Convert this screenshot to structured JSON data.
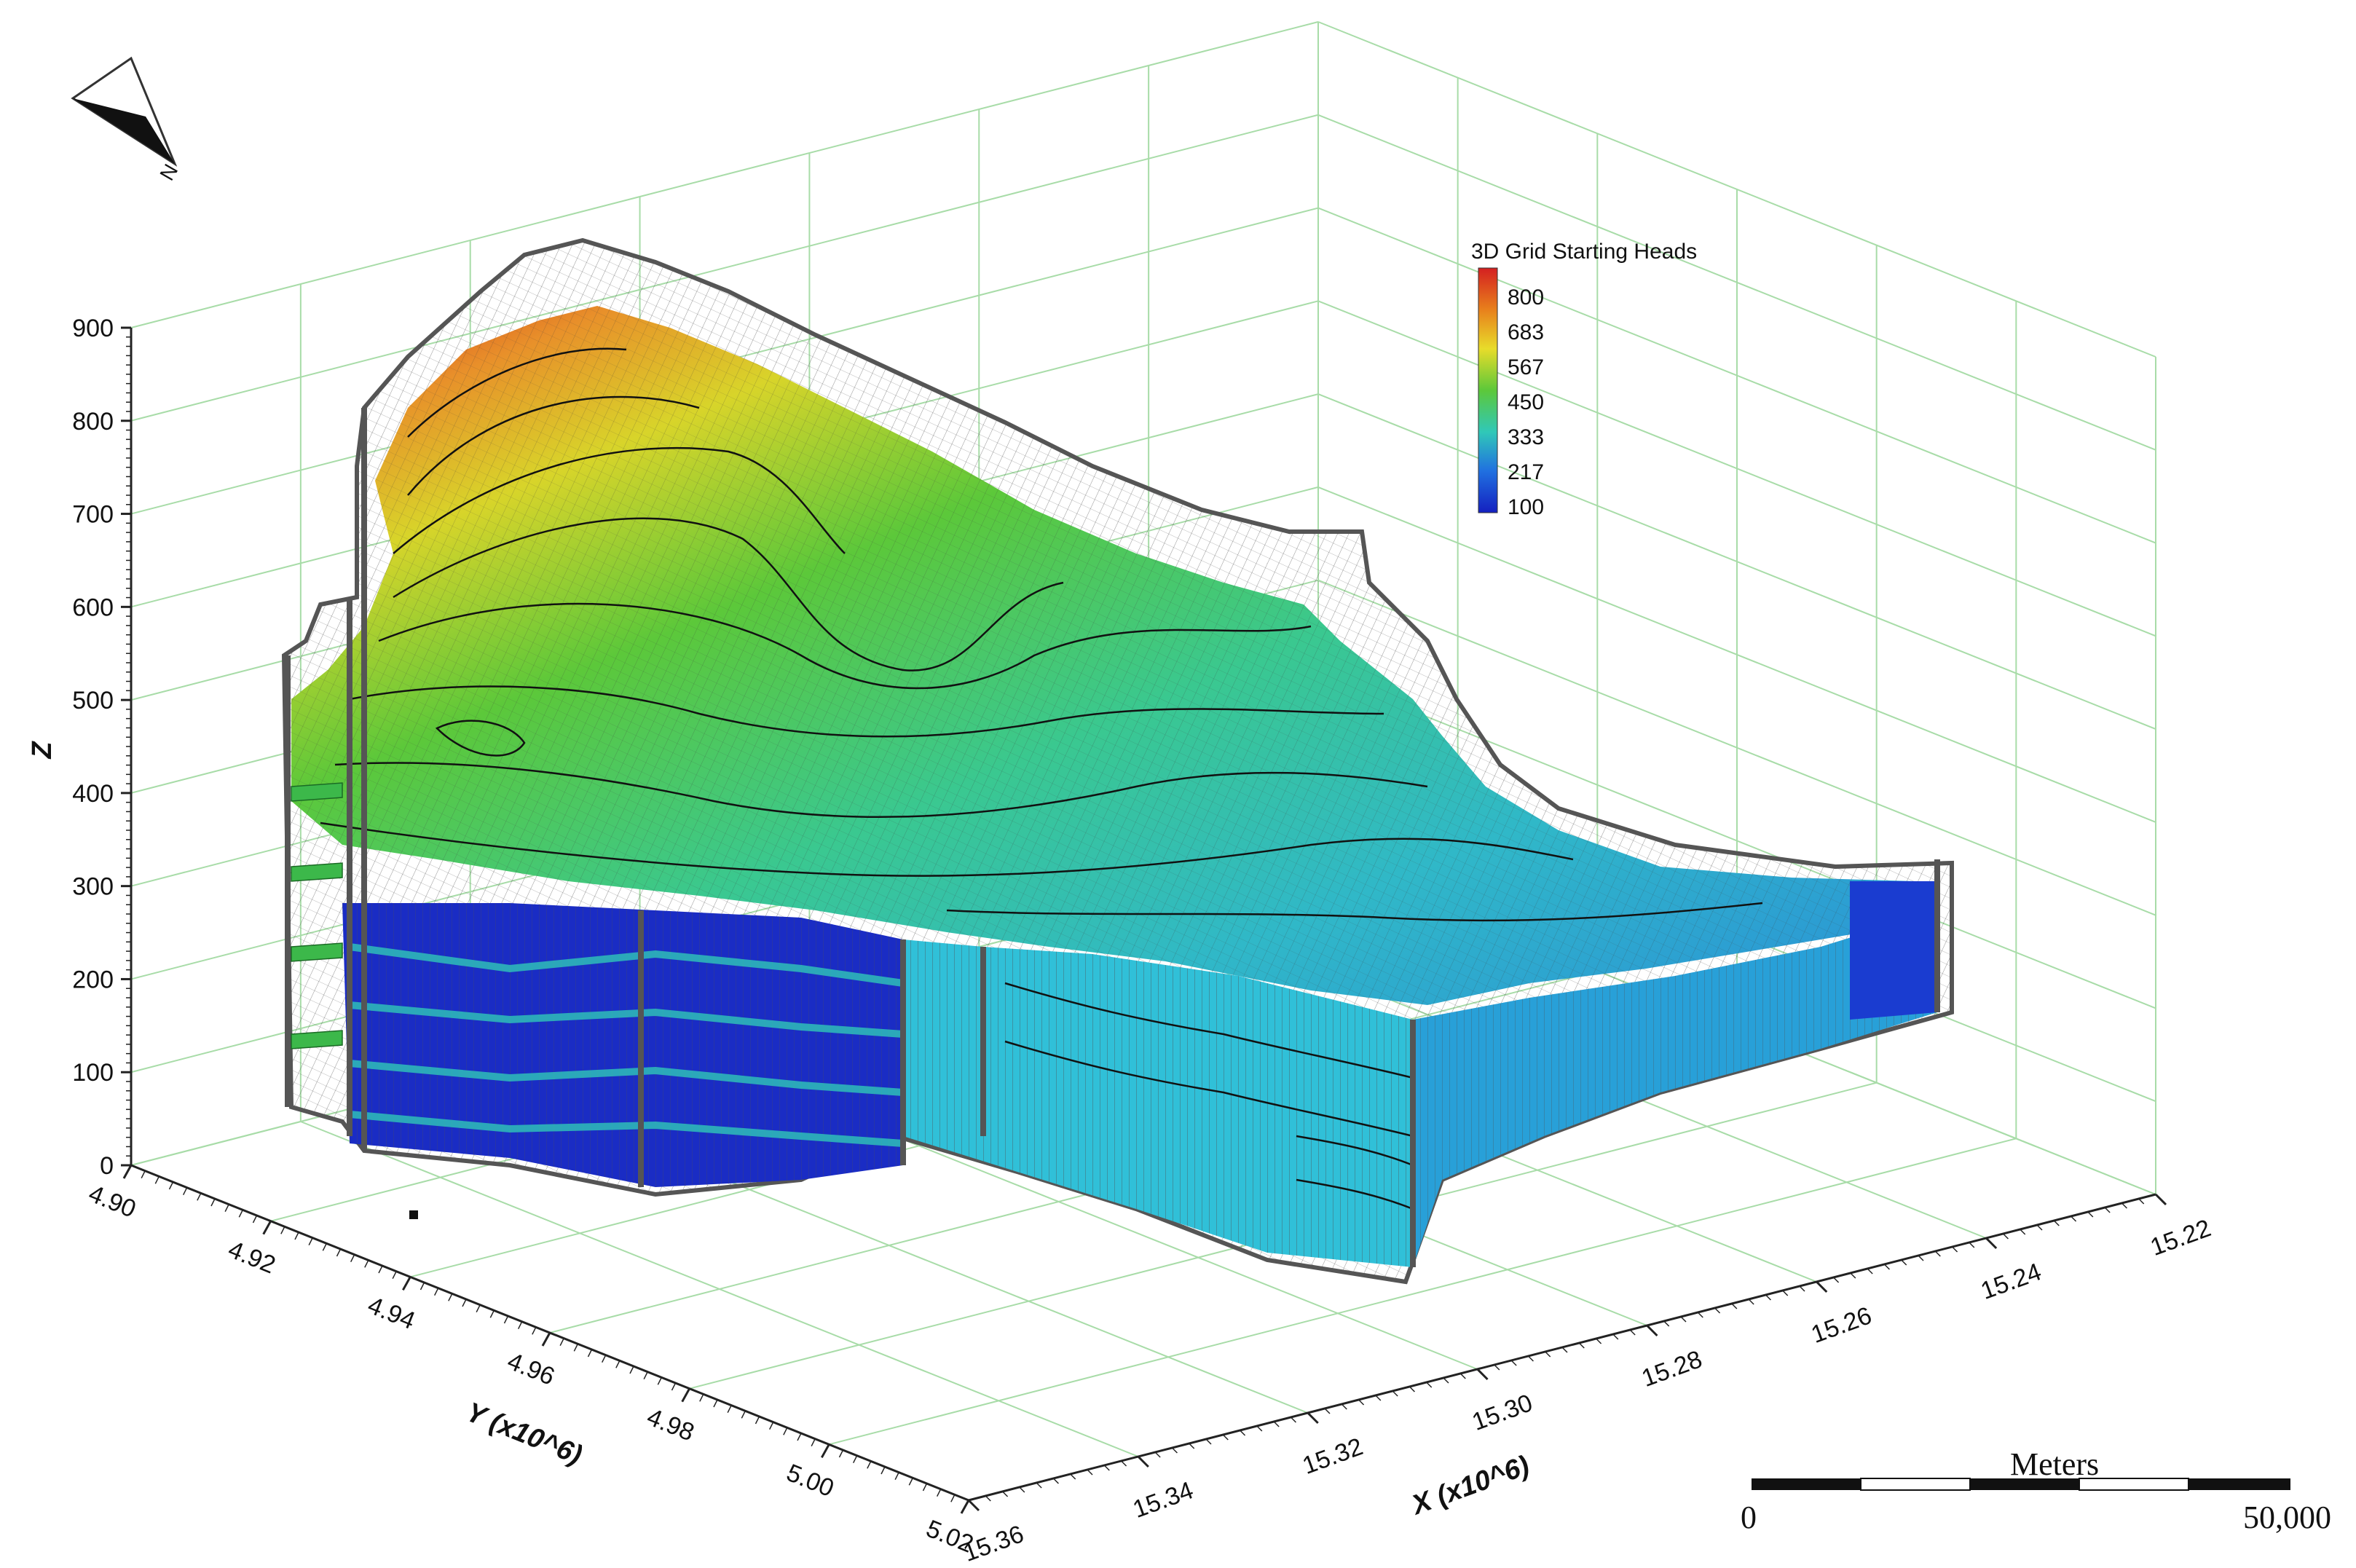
{
  "chart_data": {
    "type": "3d-surface",
    "legend": {
      "title": "3D Grid Starting Heads",
      "ticks": [
        "800",
        "683",
        "567",
        "450",
        "333",
        "217",
        "100"
      ],
      "range": [
        100,
        800
      ],
      "colors": [
        "#d42020",
        "#e8801c",
        "#e8dc2a",
        "#5cc83a",
        "#30c8b8",
        "#2070e0",
        "#1420c0"
      ]
    },
    "z_axis": {
      "label": "Z",
      "ticks": [
        "0",
        "100",
        "200",
        "300",
        "400",
        "500",
        "600",
        "700",
        "800",
        "900"
      ],
      "range": [
        0,
        900
      ]
    },
    "y_axis": {
      "label": "Y (x10^6)",
      "ticks": [
        "4.90",
        "4.92",
        "4.94",
        "4.96",
        "4.98",
        "5.00",
        "5.02"
      ],
      "range": [
        4.9,
        5.02
      ]
    },
    "x_axis": {
      "label": "X (x10^6)",
      "ticks": [
        "15.22",
        "15.24",
        "15.26",
        "15.28",
        "15.30",
        "15.32",
        "15.34",
        "15.36"
      ],
      "range": [
        15.22,
        15.36
      ]
    },
    "grid": true
  },
  "scale_bar": {
    "units": "Meters",
    "start_label": "0",
    "end_label": "50,000"
  },
  "north_arrow": {
    "label": "N"
  },
  "colors": {
    "grid": "#a8dca8",
    "mesh": "#606060"
  }
}
